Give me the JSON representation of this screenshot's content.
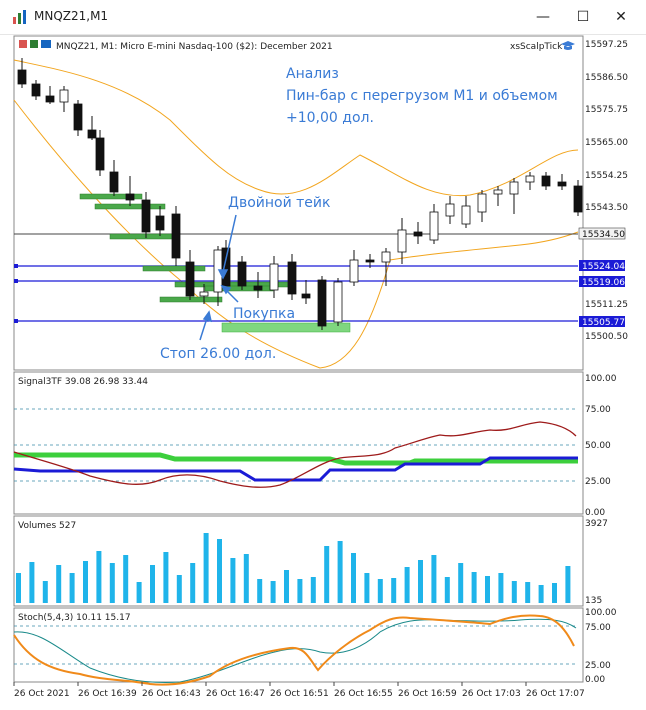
{
  "window": {
    "title": "MNQZ21,M1",
    "minimize_label": "—",
    "maximize_label": "☐",
    "close_label": "✕"
  },
  "main_chart": {
    "header": "MNQZ21, M1:  Micro E-mini Nasdaq-100 ($2): December 2021",
    "indicator_label": "xsScalpTick",
    "price_labels": [
      "15597.25",
      "15586.50",
      "15575.75",
      "15565.00",
      "15554.25",
      "15543.50",
      "15534.50",
      "15524.04",
      "15519.06",
      "15511.25",
      "15505.77",
      "15500.50"
    ],
    "annotation_analysis_1": "Анализ",
    "annotation_analysis_2": "Пин-бар с перегрузом М1 и объемом",
    "annotation_analysis_3": "+10,00 дол.",
    "annotation_double_take": "Двойной тейк",
    "annotation_buy": "Покупка",
    "annotation_stop": "Стоп 26.00 дол."
  },
  "signal_panel": {
    "header": "Signal3TF 39.08 26.98 33.44",
    "scale_labels": [
      "100.00",
      "75.00",
      "50.00",
      "25.00",
      "0.00"
    ]
  },
  "volume_panel": {
    "header": "Volumes 527",
    "scale_labels": [
      "3927",
      "135"
    ]
  },
  "stoch_panel": {
    "header": "Stoch(5,4,3) 10.11 15.17",
    "scale_labels": [
      "100.00",
      "75.00",
      "25.00",
      "0.00"
    ]
  },
  "time_axis": [
    "26 Oct 2021",
    "26 Oct 16:39",
    "26 Oct 16:43",
    "26 Oct 16:47",
    "26 Oct 16:51",
    "26 Oct 16:55",
    "26 Oct 16:59",
    "26 Oct 17:03",
    "26 Oct 17:07"
  ],
  "colors": {
    "bollinger": "#f2a51e",
    "blue_line": "#1b1bd6",
    "green_line": "#3ccf3c",
    "signal_red": "#9e1b1b",
    "volume_bar": "#1fb4ea",
    "stoch_main": "#1a8a8a",
    "stoch_signal": "#f08a1a",
    "annotation_text": "#3a7bd5"
  }
}
